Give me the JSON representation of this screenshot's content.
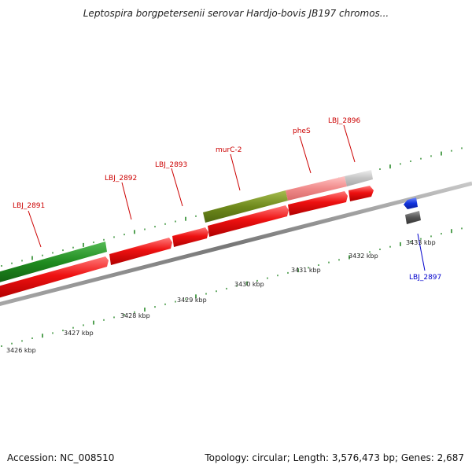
{
  "title": "Leptospira borgpetersenii serovar Hardjo-bovis JB197 chromos...",
  "footer": {
    "accession": "Accession: NC_008510",
    "topology": "Topology: circular; Length: 3,576,473 bp; Genes: 2,687"
  },
  "colors": {
    "cds_forward": "#ee1111",
    "gene_label_forward": "#cc0000",
    "gene_label_reverse": "#0000cc",
    "gene_reverse": "#1133dd",
    "backbone": "#888888",
    "tick_marks": "#2a8a2a"
  },
  "ruler": [
    {
      "label": "3426 kbp"
    },
    {
      "label": "3427 kbp"
    },
    {
      "label": "3428 kbp"
    },
    {
      "label": "3429 kbp"
    },
    {
      "label": "3430 kbp"
    },
    {
      "label": "3431 kbp"
    },
    {
      "label": "3432 kbp"
    },
    {
      "label": "3433 kbp"
    }
  ],
  "genes": [
    {
      "name": "LBJ_2891",
      "strand": "forward"
    },
    {
      "name": "LBJ_2892",
      "strand": "forward"
    },
    {
      "name": "LBJ_2893",
      "strand": "forward"
    },
    {
      "name": "murC-2",
      "strand": "forward"
    },
    {
      "name": "pheS",
      "strand": "forward"
    },
    {
      "name": "LBJ_2896",
      "strand": "forward"
    },
    {
      "name": "LBJ_2897",
      "strand": "reverse"
    }
  ]
}
